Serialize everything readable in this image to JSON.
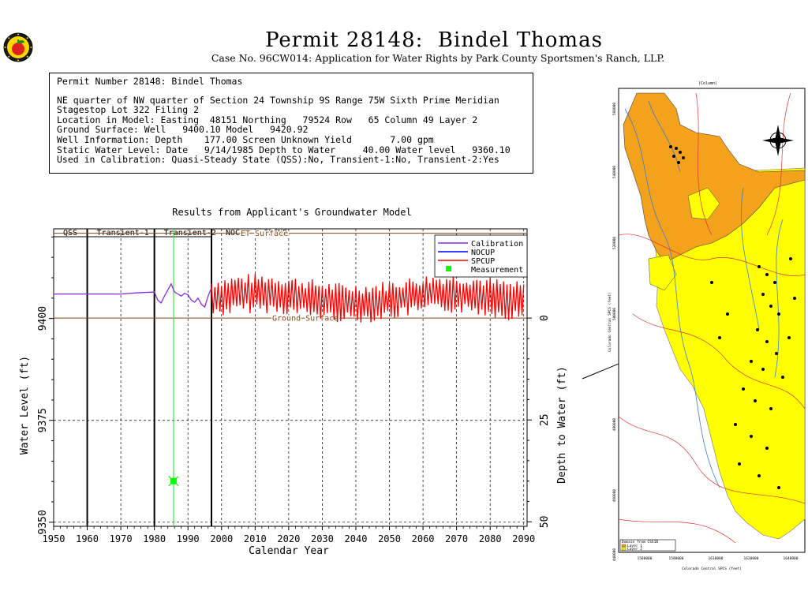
{
  "header": {
    "title": "Permit 28148:  Bindel Thomas",
    "subtitle": "Case No. 96CW014: Application for Water Rights by Park County Sportsmen's Ranch, LLP."
  },
  "info": {
    "lines": [
      "Permit Number 28148: Bindel Thomas",
      "",
      "NE quarter of NW quarter of Section 24 Township 9S Range 75W Sixth Prime Meridian",
      "Stagestop Lot 322 Filing 2",
      "Location in Model: Easting  48151 Northing   79524 Row   65 Column 49 Layer 2",
      "Ground Surface: Well   9400.10 Model   9420.92",
      "Well Information: Depth    177.00 Screen Unknown Yield       7.00 gpm",
      "Static Water Level: Date   9/14/1985 Depth to Water     40.00 Water level   9360.10",
      "Used in Calibration: Quasi-Steady State (QSS):No, Transient-1:No, Transient-2:Yes"
    ]
  },
  "chart_data": {
    "type": "line",
    "title": "Results from Applicant's Groundwater Model",
    "xlabel": "Calendar Year",
    "ylabel": "Water Level (ft)",
    "ylabel_right": "Depth to Water (ft)",
    "xlim": [
      1950,
      2091
    ],
    "ylim": [
      9349,
      9422
    ],
    "x_ticks": [
      1950,
      1960,
      1970,
      1980,
      1990,
      2000,
      2010,
      2020,
      2030,
      2040,
      2050,
      2060,
      2070,
      2080,
      2090
    ],
    "y_ticks": [
      9350,
      9375,
      9400
    ],
    "right_ticks": [
      {
        "label": "0",
        "elev": 9400.1
      },
      {
        "label": "25",
        "elev": 9375.1
      },
      {
        "label": "50",
        "elev": 9350.1
      }
    ],
    "periods": [
      {
        "label": "QSS",
        "start": 1950,
        "end": 1960
      },
      {
        "label": "Transient-1",
        "start": 1960,
        "end": 1980
      },
      {
        "label": "Transient-2",
        "start": 1980,
        "end": 1997
      },
      {
        "label": "NOCUP & SPCUP",
        "start": 1997,
        "end": 2091
      }
    ],
    "reference_lines": [
      {
        "label": "ET Surface",
        "elev": 9420.9,
        "color": "#8b4513"
      },
      {
        "label": "Ground Surface",
        "elev": 9400.1,
        "color": "#8b4513"
      }
    ],
    "series": [
      {
        "name": "Calibration",
        "color": "#8a2be2",
        "x": [
          1950,
          1960,
          1970,
          1975,
          1980,
          1981,
          1982,
          1983,
          1984,
          1985,
          1986,
          1987,
          1988,
          1989,
          1990,
          1991,
          1992,
          1993,
          1994,
          1995,
          1996,
          1997
        ],
        "y": [
          9406.0,
          9406.0,
          9406.0,
          9406.3,
          9406.5,
          9404.5,
          9403.8,
          9405.5,
          9407.0,
          9408.5,
          9406.5,
          9406.0,
          9405.5,
          9406.2,
          9405.8,
          9404.5,
          9404.0,
          9405.0,
          9403.5,
          9402.8,
          9405.5,
          9407.5
        ]
      },
      {
        "name": "NOCUP",
        "color": "#0000ff",
        "x": [],
        "y": []
      },
      {
        "name": "SPCUP",
        "color": "#ff0000",
        "start_year": 1997,
        "end_year": 2090,
        "step": 0.5,
        "base_elev": 9405.0,
        "amplitude": 3.8
      },
      {
        "name": "Measurement",
        "color": "#00ff00",
        "x": [
          1985.7
        ],
        "y": [
          9360.1
        ]
      }
    ],
    "legend_position": "top-right",
    "grid": "dashed vertical and horizontal"
  },
  "map": {
    "title": "(Column)",
    "ylabel": "Colorado Central SPCS (feet)",
    "xlabel": "Colorado Central SPCS (feet)",
    "legend_title": "Domain from CSS1B",
    "legend_items": [
      "Layer 1",
      "Layer 2"
    ],
    "x_tick_labels": [
      "1580000",
      "1590000",
      "1610000",
      "1620000",
      "1640000"
    ],
    "y_tick_labels": [
      "560000",
      "540000",
      "520000",
      "500000",
      "480000",
      "460000",
      "440000"
    ]
  },
  "colors": {
    "calibration": "#8a2be2",
    "nocup": "#0000ff",
    "spcup": "#ff0000",
    "measurement": "#00ff00",
    "reference": "#8b4513",
    "layer1": "#f4a21c",
    "layer2": "#ffff00"
  },
  "logo": {
    "icon": "apple-logo-icon"
  }
}
